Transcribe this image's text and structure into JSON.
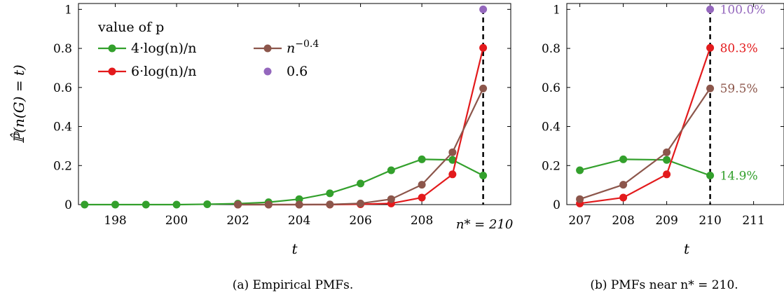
{
  "colors": {
    "green": "#33a02c",
    "red": "#e31a1c",
    "brown": "#8c564b",
    "purple": "#9467bd"
  },
  "chart_data": [
    {
      "type": "line",
      "caption": "(a) Empirical PMFs.",
      "xlabel": "t",
      "ylabel": "ℙ̂(n(G) = t)",
      "xlim": [
        196.8,
        210.9
      ],
      "ylim": [
        0,
        1.03
      ],
      "xticks": [
        198,
        200,
        202,
        204,
        206,
        208
      ],
      "yticks": [
        0,
        0.2,
        0.4,
        0.6,
        0.8,
        1
      ],
      "ytick_labels": [
        "0",
        "0.2",
        "0.4",
        "0.6",
        "0.8",
        "1"
      ],
      "vline": {
        "x": 210,
        "style": "dashed",
        "label": "n* = 210"
      },
      "legend": {
        "title": "value of p",
        "placement": "top-left"
      },
      "series": [
        {
          "name": "4·log(n)/n",
          "color": "green",
          "x": [
            197,
            198,
            199,
            200,
            201,
            202,
            203,
            204,
            205,
            206,
            207,
            208,
            209,
            210
          ],
          "y": [
            0,
            0,
            0,
            0,
            0.002,
            0.005,
            0.012,
            0.028,
            0.058,
            0.108,
            0.176,
            0.232,
            0.229,
            0.149
          ]
        },
        {
          "name": "6·log(n)/n",
          "color": "red",
          "x": [
            202,
            203,
            204,
            205,
            206,
            207,
            208,
            209,
            210
          ],
          "y": [
            0,
            0,
            0,
            0,
            0.002,
            0.006,
            0.036,
            0.155,
            0.803
          ]
        },
        {
          "name": "n^−0.4",
          "color": "brown",
          "x": [
            202,
            203,
            204,
            205,
            206,
            207,
            208,
            209,
            210
          ],
          "y": [
            0,
            0,
            0,
            0.001,
            0.006,
            0.028,
            0.102,
            0.268,
            0.595
          ]
        },
        {
          "name": "0.6",
          "color": "purple",
          "markers_only": true,
          "x": [
            210
          ],
          "y": [
            1.0
          ]
        }
      ]
    },
    {
      "type": "line",
      "caption": "(b) PMFs near n* = 210.",
      "xlabel": "t",
      "xlim": [
        206.7,
        211.7
      ],
      "ylim": [
        0,
        1.03
      ],
      "xticks": [
        207,
        208,
        209,
        210,
        211
      ],
      "yticks": [
        0,
        0.2,
        0.4,
        0.6,
        0.8,
        1
      ],
      "ytick_labels": [
        "0",
        "0.2",
        "0.4",
        "0.6",
        "0.8",
        "1"
      ],
      "vline": {
        "x": 210,
        "style": "dashed"
      },
      "series": [
        {
          "color": "green",
          "x": [
            207,
            208,
            209,
            210
          ],
          "y": [
            0.176,
            0.232,
            0.229,
            0.149
          ],
          "end_label": "14.9%"
        },
        {
          "color": "red",
          "x": [
            207,
            208,
            209,
            210
          ],
          "y": [
            0.006,
            0.036,
            0.155,
            0.803
          ],
          "end_label": "80.3%"
        },
        {
          "color": "brown",
          "x": [
            207,
            208,
            209,
            210
          ],
          "y": [
            0.028,
            0.102,
            0.268,
            0.595
          ],
          "end_label": "59.5%"
        },
        {
          "color": "purple",
          "markers_only": true,
          "x": [
            210
          ],
          "y": [
            1.0
          ],
          "end_label": "100.0%"
        }
      ]
    }
  ]
}
